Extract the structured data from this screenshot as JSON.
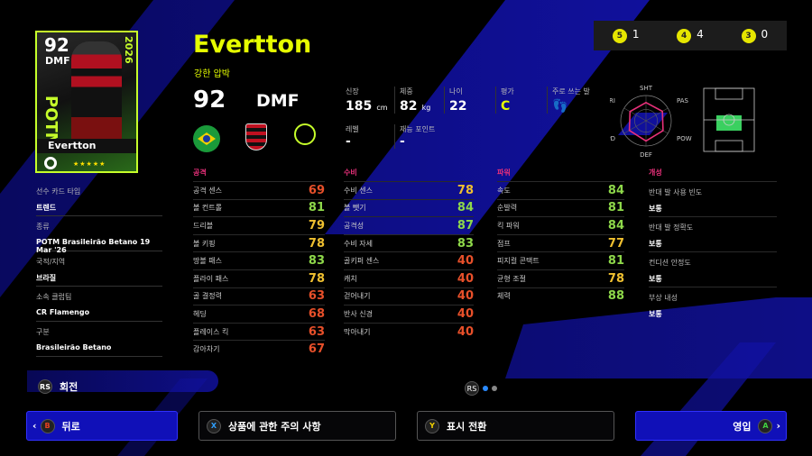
{
  "card": {
    "overall": "92",
    "position": "DMF",
    "event": "POTM",
    "year": "2026",
    "name": "Evertton",
    "stars": "★★★★★"
  },
  "info": [
    {
      "label": "선수 카드 타입",
      "value": "트렌드"
    },
    {
      "label": "종류",
      "value": "POTM Brasileirão Betano 19 Mar '26"
    },
    {
      "label": "국적/지역",
      "value": "브라질"
    },
    {
      "label": "소속 클럽팀",
      "value": "CR Flamengo"
    },
    {
      "label": "구분",
      "value": "Brasileirão Betano"
    }
  ],
  "player": {
    "name": "Evertton",
    "playstyle": "강한 압박",
    "overall": "92",
    "position": "DMF"
  },
  "physical": {
    "height_label": "신장",
    "height": "185",
    "height_unit": "cm",
    "weight_label": "체중",
    "weight": "82",
    "weight_unit": "kg",
    "age_label": "나이",
    "age": "22",
    "rating_label": "평가",
    "rating": "C",
    "foot_label": "주로 쓰는 발",
    "level_label": "레벨",
    "level": "-",
    "skill_label": "재능 포인트",
    "skill": "-"
  },
  "coins": [
    {
      "badge": "5",
      "count": "1"
    },
    {
      "badge": "4",
      "count": "4"
    },
    {
      "badge": "3",
      "count": "0"
    }
  ],
  "radar": {
    "labels": [
      "SHT",
      "PAS",
      "POW",
      "DEF",
      "SPD",
      "DRI"
    ],
    "values": [
      0.72,
      0.75,
      0.78,
      0.8,
      0.76,
      0.73
    ]
  },
  "colors": {
    "high": "#8ed84a",
    "mid": "#f0c030",
    "low": "#e8502a",
    "accent": "#e6ff00",
    "header": "#e8307a"
  },
  "attack": {
    "title": "공격",
    "stats": [
      [
        "공격 센스",
        "69"
      ],
      [
        "볼 컨트롤",
        "81"
      ],
      [
        "드리블",
        "79"
      ],
      [
        "볼 키핑",
        "78"
      ],
      [
        "땅볼 패스",
        "83"
      ],
      [
        "플라이 패스",
        "78"
      ],
      [
        "골 결정력",
        "63"
      ],
      [
        "헤딩",
        "68"
      ],
      [
        "플레이스 킥",
        "63"
      ],
      [
        "감아차기",
        "67"
      ]
    ]
  },
  "defense": {
    "title": "수비",
    "stats": [
      [
        "수비 센스",
        "78"
      ],
      [
        "볼 뺏기",
        "84"
      ],
      [
        "공격성",
        "87"
      ],
      [
        "수비 자세",
        "83"
      ],
      [
        "골키퍼 센스",
        "40"
      ],
      [
        "캐치",
        "40"
      ],
      [
        "걷어내기",
        "40"
      ],
      [
        "반사 신경",
        "40"
      ],
      [
        "막아내기",
        "40"
      ]
    ]
  },
  "power": {
    "title": "파워",
    "stats": [
      [
        "속도",
        "84"
      ],
      [
        "순발력",
        "81"
      ],
      [
        "킥 파워",
        "84"
      ],
      [
        "점프",
        "77"
      ],
      [
        "피지컬 콘택트",
        "81"
      ],
      [
        "균형 조절",
        "78"
      ],
      [
        "체력",
        "88"
      ]
    ]
  },
  "character": {
    "title": "개성",
    "items": [
      [
        "반대 발 사용 빈도",
        "보통"
      ],
      [
        "반대 발 정확도",
        "보통"
      ],
      [
        "컨디션 안정도",
        "보통"
      ],
      [
        "부상 내성",
        "보통"
      ]
    ]
  },
  "controls": {
    "rotate_key": "RS",
    "rotate": "회전",
    "page_key": "RS",
    "back_key": "B",
    "back": "뒤로",
    "notice_key": "X",
    "notice": "상품에 관한 주의 사항",
    "toggle_key": "Y",
    "toggle": "표시 전환",
    "sign_key": "A",
    "sign": "영입"
  }
}
